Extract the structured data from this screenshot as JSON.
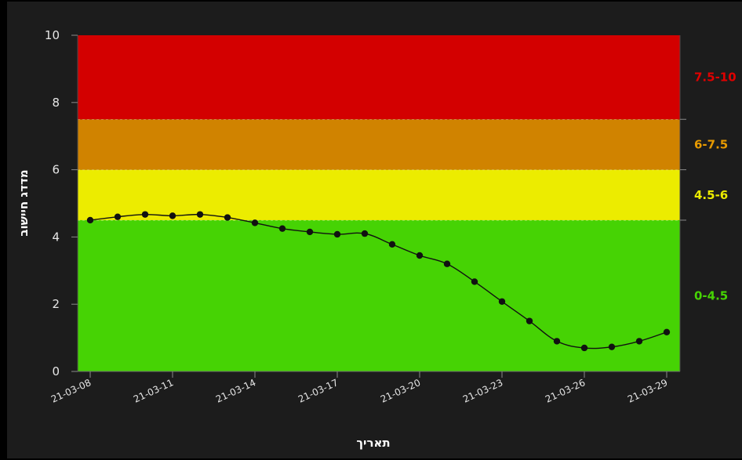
{
  "chart_data": {
    "type": "line",
    "xlabel": "תאריך",
    "ylabel": "מדדג חיישוב",
    "ylim": [
      0,
      10
    ],
    "y_ticks": [
      "0",
      "2",
      "4",
      "6",
      "8",
      "10"
    ],
    "x_tick_labels": [
      "21-03-08",
      "21-03-11",
      "21-03-14",
      "21-03-17",
      "21-03-20",
      "21-03-23",
      "21-03-26",
      "21-03-29"
    ],
    "x": [
      "21-03-08",
      "21-03-09",
      "21-03-10",
      "21-03-11",
      "21-03-12",
      "21-03-13",
      "21-03-14",
      "21-03-15",
      "21-03-16",
      "21-03-17",
      "21-03-18",
      "21-03-19",
      "21-03-20",
      "21-03-21",
      "21-03-22",
      "21-03-23",
      "21-03-24",
      "21-03-25",
      "21-03-26",
      "21-03-27",
      "21-03-28",
      "21-03-29"
    ],
    "series": [
      {
        "values": [
          4.5,
          4.6,
          4.67,
          4.63,
          4.67,
          4.58,
          4.42,
          4.25,
          4.15,
          4.08,
          4.1,
          3.78,
          3.45,
          3.2,
          2.67,
          2.08,
          1.5,
          0.9,
          0.7,
          0.73,
          0.9,
          1.17
        ],
        "color": "#111111"
      }
    ],
    "bands": [
      {
        "label": "0-4.5",
        "from": 0,
        "to": 4.5,
        "color": "#46d304",
        "label_color": "#46d304"
      },
      {
        "label": "4.5-6",
        "from": 4.5,
        "to": 6,
        "color": "#ecec00",
        "label_color": "#ecec00"
      },
      {
        "label": "6-7.5",
        "from": 6,
        "to": 7.5,
        "color": "#d08300",
        "label_color": "#e79a00"
      },
      {
        "label": "7.5-10",
        "from": 7.5,
        "to": 10,
        "color": "#d30000",
        "label_color": "#e00000"
      }
    ],
    "grid": false,
    "legend": "none"
  }
}
